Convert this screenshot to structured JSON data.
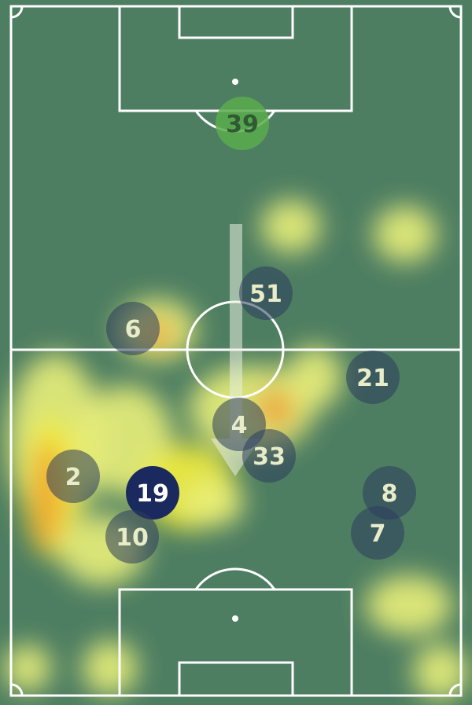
{
  "colors": {
    "pitch": "#4e7e62",
    "lines": "#ffffff",
    "goalkeeper": "#5aab4e",
    "selected_player": "#1b2a5e",
    "teammate": "#2b3c5c",
    "heat_low": "#e9f07a",
    "heat_mid": "#f3ee3a",
    "heat_high": "#f0a030"
  },
  "players": [
    {
      "number": "39",
      "role": "goalkeeper"
    },
    {
      "number": "51",
      "role": "teammate"
    },
    {
      "number": "6",
      "role": "teammate"
    },
    {
      "number": "21",
      "role": "teammate"
    },
    {
      "number": "4",
      "role": "teammate"
    },
    {
      "number": "33",
      "role": "teammate"
    },
    {
      "number": "2",
      "role": "teammate"
    },
    {
      "number": "19",
      "role": "selected"
    },
    {
      "number": "8",
      "role": "teammate"
    },
    {
      "number": "7",
      "role": "teammate"
    },
    {
      "number": "10",
      "role": "teammate"
    }
  ],
  "attack_direction": "down"
}
